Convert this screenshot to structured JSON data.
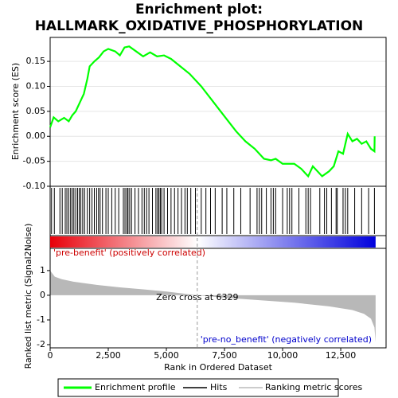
{
  "chart_data": [
    {
      "type": "line",
      "title": [
        "Enrichment plot:",
        "HALLMARK_OXIDATIVE_PHOSPHORYLATION"
      ],
      "ylabel": "Enrichment score (ES)",
      "xlim": [
        0,
        14450
      ],
      "ylim": [
        -0.1,
        0.198
      ],
      "yticks": [
        0.15,
        {
          "value": 0.1,
          "label": "0.10"
        },
        0.05,
        {
          "value": 0,
          "label": "0.00"
        },
        -0.05,
        {
          "value": -0.1,
          "label": "-0.10"
        }
      ],
      "grid": true,
      "series": [
        {
          "name": "Enrichment profile",
          "color": "#00ff00",
          "x": [
            0,
            150,
            350,
            600,
            800,
            950,
            1100,
            1250,
            1450,
            1600,
            1700,
            1900,
            2100,
            2300,
            2500,
            2800,
            3000,
            3200,
            3400,
            3700,
            4000,
            4300,
            4600,
            4900,
            5200,
            5600,
            6000,
            6500,
            7000,
            7500,
            8000,
            8400,
            8800,
            9200,
            9500,
            9700,
            10000,
            10500,
            10800,
            11100,
            11300,
            11700,
            12000,
            12200,
            12400,
            12600,
            12800,
            13000,
            13200,
            13400,
            13600,
            13800,
            13950,
            13960
          ],
          "values": [
            0.018,
            0.038,
            0.03,
            0.037,
            0.03,
            0.042,
            0.05,
            0.065,
            0.085,
            0.115,
            0.14,
            0.15,
            0.158,
            0.17,
            0.175,
            0.17,
            0.162,
            0.178,
            0.18,
            0.17,
            0.16,
            0.168,
            0.16,
            0.162,
            0.155,
            0.14,
            0.125,
            0.1,
            0.07,
            0.04,
            0.01,
            -0.01,
            -0.025,
            -0.045,
            -0.048,
            -0.045,
            -0.055,
            -0.055,
            -0.065,
            -0.08,
            -0.06,
            -0.08,
            -0.07,
            -0.06,
            -0.03,
            -0.035,
            0.005,
            -0.01,
            -0.005,
            -0.015,
            -0.01,
            -0.025,
            -0.03,
            0.0
          ]
        }
      ],
      "hits": {
        "name": "Hits",
        "color": "#000000",
        "values": [
          60,
          180,
          420,
          520,
          650,
          720,
          800,
          880,
          950,
          1020,
          1100,
          1180,
          1250,
          1320,
          1400,
          1480,
          1600,
          1700,
          1800,
          1900,
          2000,
          2080,
          2150,
          2250,
          2400,
          2500,
          2650,
          2800,
          2950,
          3150,
          3220,
          3300,
          3350,
          3420,
          3500,
          3650,
          3800,
          3950,
          4050,
          4150,
          4250,
          4400,
          4550,
          4620,
          4680,
          4740,
          4800,
          4900,
          5050,
          5200,
          5350,
          5500,
          5650,
          5800,
          5900,
          6050,
          6250,
          6500,
          6700,
          6900,
          7100,
          7400,
          7600,
          7900,
          8200,
          8600,
          8900,
          9000,
          9100,
          9300,
          9500,
          9600,
          9700,
          10000,
          10200,
          10300,
          10400,
          10700,
          11000,
          11100,
          11200,
          11600,
          11800,
          11900,
          12100,
          12300,
          12350,
          12600,
          12700,
          12800,
          13100,
          13400,
          13700,
          13950
        ]
      }
    },
    {
      "type": "area",
      "ylabel": "Ranked list metric (Signal2Noise)",
      "xlabel": "Rank in Ordered Dataset",
      "xlim": [
        0,
        14450
      ],
      "ylim": [
        -2.13,
        1.9
      ],
      "xticks": [
        0,
        {
          "value": 2500,
          "label": "2,500"
        },
        {
          "value": 5000,
          "label": "5,000"
        },
        {
          "value": 7500,
          "label": "7,500"
        },
        {
          "value": 10000,
          "label": "10,000"
        },
        {
          "value": 12500,
          "label": "12,500"
        }
      ],
      "yticks": [
        1,
        0,
        -1,
        -2
      ],
      "series": [
        {
          "name": "Ranking metric scores",
          "color": "#b8b8b8",
          "x": [
            0,
            200,
            500,
            1000,
            2000,
            3000,
            4000,
            5000,
            6329,
            7500,
            9000,
            10500,
            12000,
            13000,
            13500,
            13800,
            13950,
            14000
          ],
          "values": [
            1.0,
            0.75,
            0.65,
            0.55,
            0.42,
            0.32,
            0.24,
            0.15,
            0.0,
            -0.1,
            -0.2,
            -0.3,
            -0.45,
            -0.6,
            -0.75,
            -0.95,
            -1.3,
            -1.9
          ]
        }
      ],
      "zero_cross": 6329,
      "annotation": "Zero cross at 6329",
      "pos_label": "'pre-benefit' (positively correlated)",
      "neg_label": "'pre-no_benefit' (negatively correlated)"
    }
  ]
}
